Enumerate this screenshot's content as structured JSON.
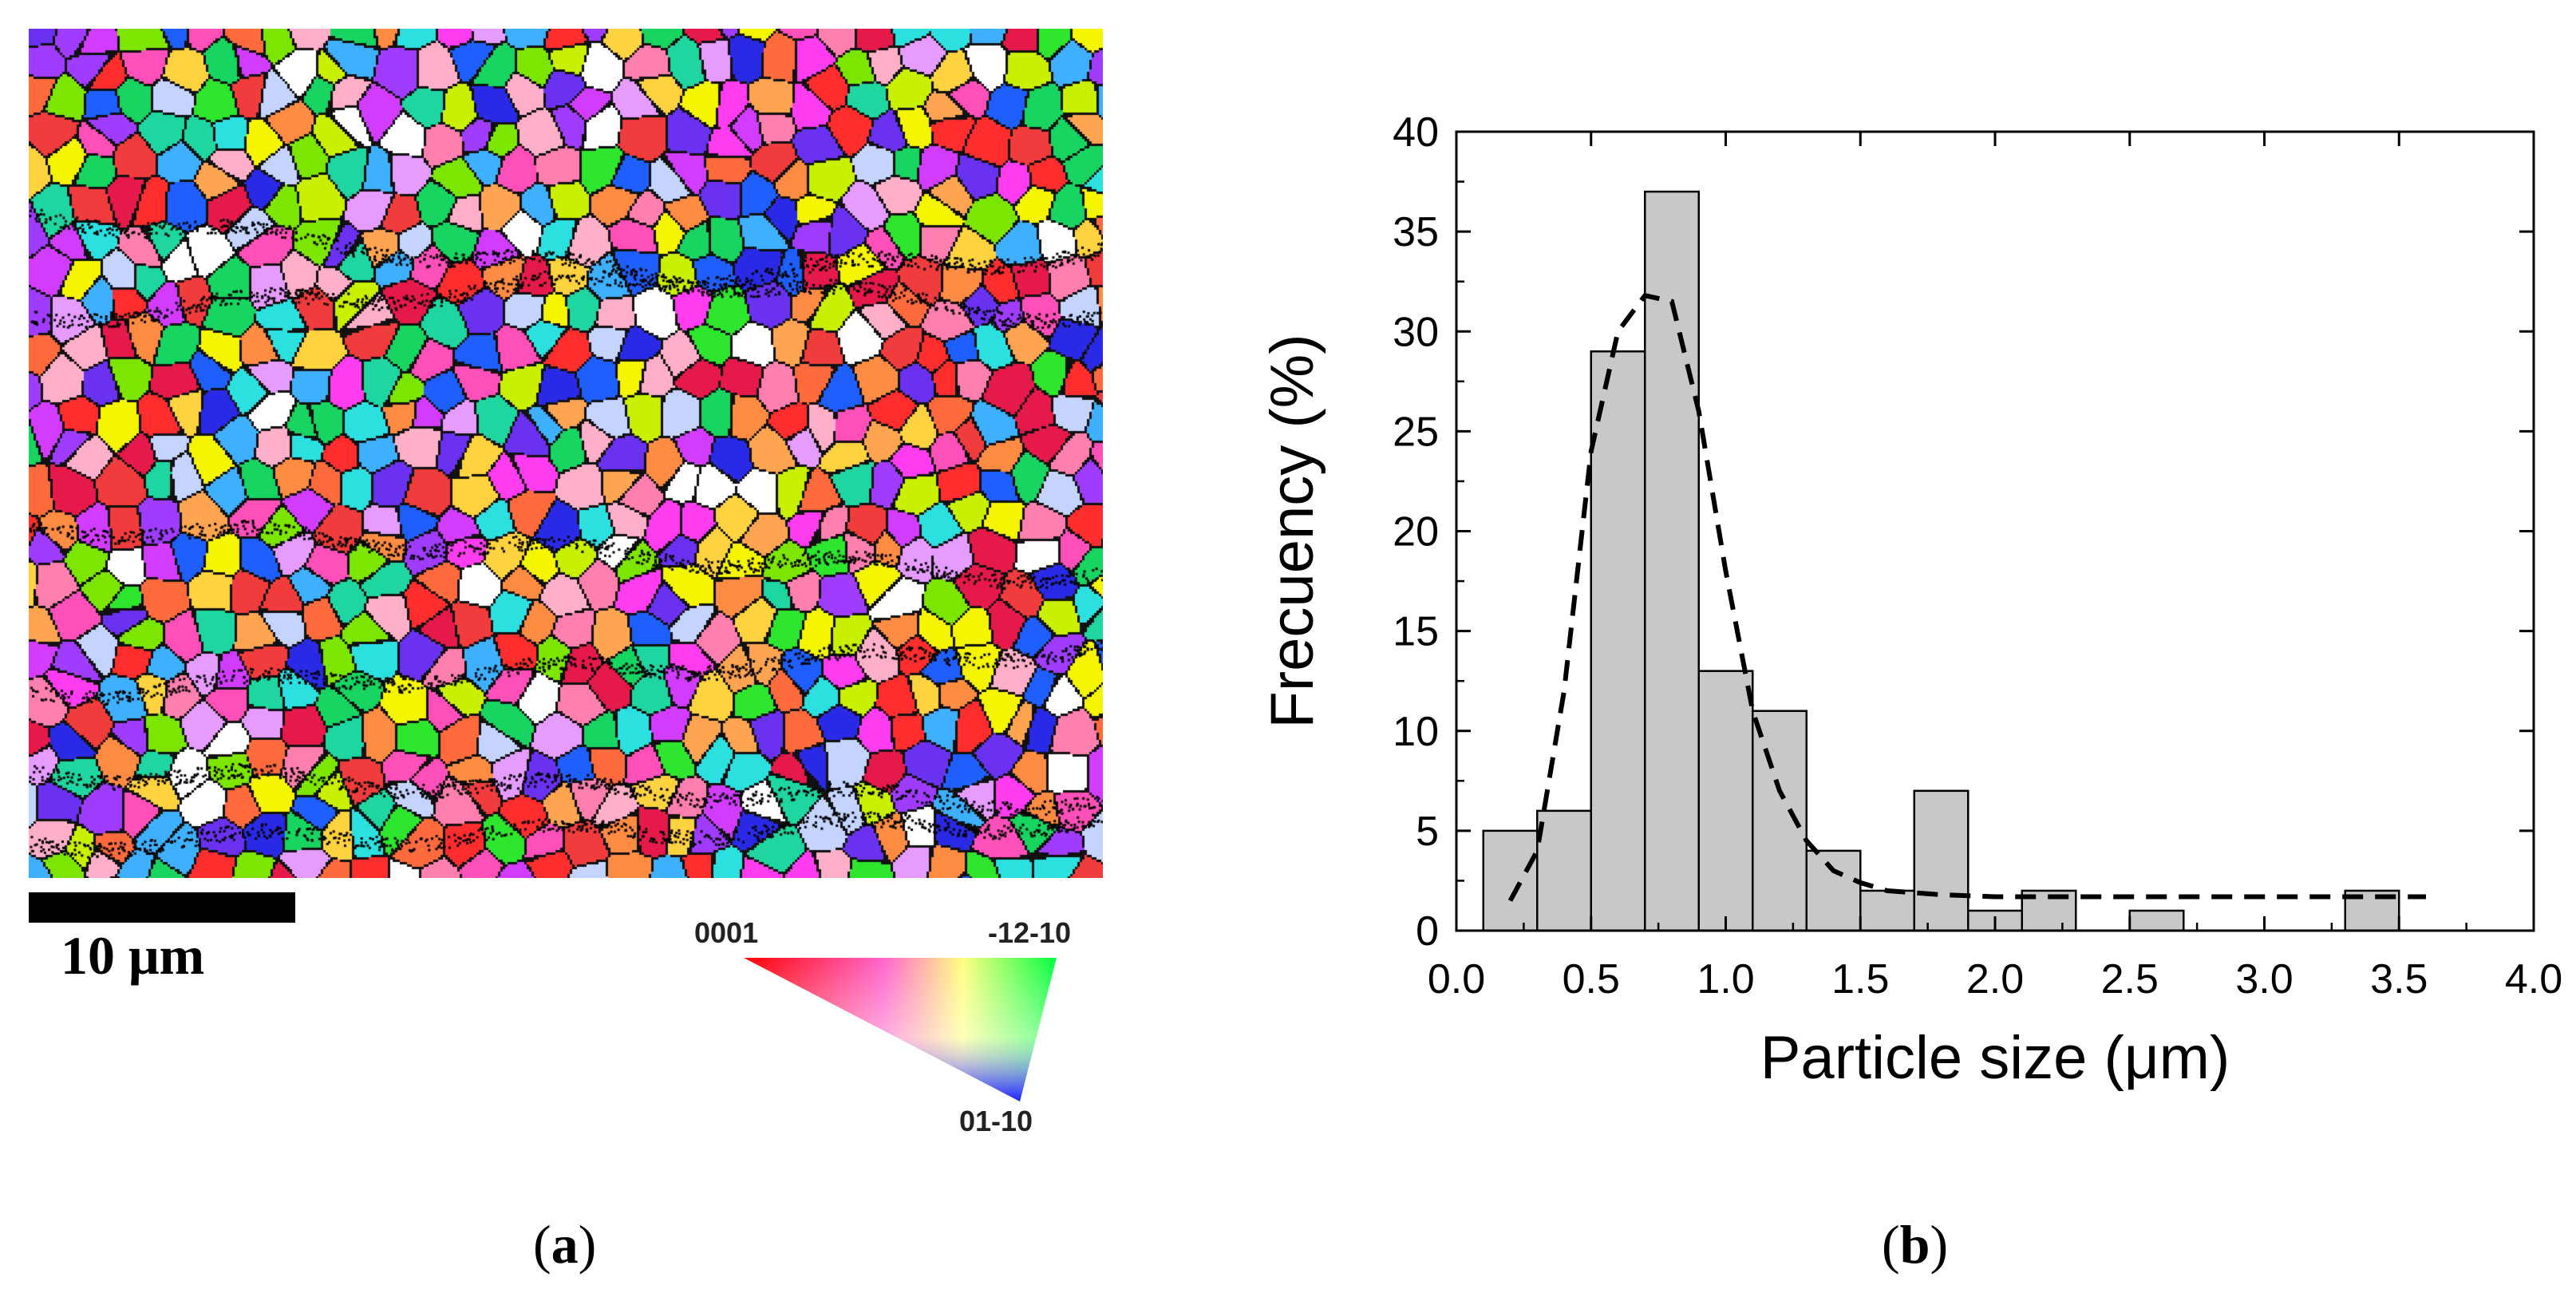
{
  "panel_a": {
    "scale_label": "10 μm",
    "ipf_corner_top_left": "0001",
    "ipf_corner_top_right": "-12-10",
    "ipf_corner_bottom": "01-10",
    "grain_colors": [
      "#e6194b",
      "#f03c3c",
      "#ff2d2d",
      "#ff6b3d",
      "#ff8c42",
      "#ffa552",
      "#ffd23f",
      "#f5f500",
      "#c8f000",
      "#7de600",
      "#2ee62e",
      "#18d460",
      "#1fd6a0",
      "#2de0e0",
      "#3fb0ff",
      "#1f5fff",
      "#2a2ae6",
      "#6a32f0",
      "#a03cff",
      "#d23cff",
      "#ff3cf0",
      "#ff4fb8",
      "#ff7fae",
      "#e69bff",
      "#ffb0c8",
      "#c4d4ff",
      "#ffffff"
    ],
    "caption_open": "(",
    "caption_letter": "a",
    "caption_close": ")"
  },
  "panel_b": {
    "caption_open": "(",
    "caption_letter": "b",
    "caption_close": ")"
  },
  "chart_data": {
    "type": "bar",
    "subtype": "histogram",
    "title": "",
    "xlabel": "Particle size (μm)",
    "ylabel": "Frecuency (%)",
    "xlim": [
      0.0,
      4.0
    ],
    "ylim": [
      0,
      40
    ],
    "x_ticks": [
      "0.0",
      "0.5",
      "1.0",
      "1.5",
      "2.0",
      "2.5",
      "3.0",
      "3.5",
      "4.0"
    ],
    "y_ticks": [
      "0",
      "5",
      "10",
      "15",
      "20",
      "25",
      "30",
      "35",
      "40"
    ],
    "bin_width": 0.2,
    "bins": [
      {
        "x0": 0.1,
        "x1": 0.3,
        "value": 5
      },
      {
        "x0": 0.3,
        "x1": 0.5,
        "value": 6
      },
      {
        "x0": 0.5,
        "x1": 0.7,
        "value": 29
      },
      {
        "x0": 0.7,
        "x1": 0.9,
        "value": 37
      },
      {
        "x0": 0.9,
        "x1": 1.1,
        "value": 13
      },
      {
        "x0": 1.1,
        "x1": 1.3,
        "value": 11
      },
      {
        "x0": 1.3,
        "x1": 1.5,
        "value": 4
      },
      {
        "x0": 1.5,
        "x1": 1.7,
        "value": 2
      },
      {
        "x0": 1.7,
        "x1": 1.9,
        "value": 7
      },
      {
        "x0": 1.9,
        "x1": 2.1,
        "value": 1
      },
      {
        "x0": 2.1,
        "x1": 2.3,
        "value": 2
      },
      {
        "x0": 2.5,
        "x1": 2.7,
        "value": 1
      },
      {
        "x0": 3.3,
        "x1": 3.5,
        "value": 2
      }
    ],
    "fit_curve": {
      "style": "dashed",
      "x": [
        0.2,
        0.3,
        0.4,
        0.5,
        0.6,
        0.7,
        0.8,
        0.9,
        1.0,
        1.1,
        1.2,
        1.3,
        1.4,
        1.5,
        1.6,
        1.8,
        2.0,
        2.5,
        3.0,
        3.5,
        3.6
      ],
      "y": [
        1.5,
        4,
        12,
        24,
        30,
        31.8,
        31.5,
        26,
        18,
        11,
        7,
        4.5,
        3,
        2.4,
        2,
        1.8,
        1.7,
        1.7,
        1.7,
        1.7,
        1.7
      ]
    },
    "bar_color": "#c8c8c8",
    "grid": false
  }
}
